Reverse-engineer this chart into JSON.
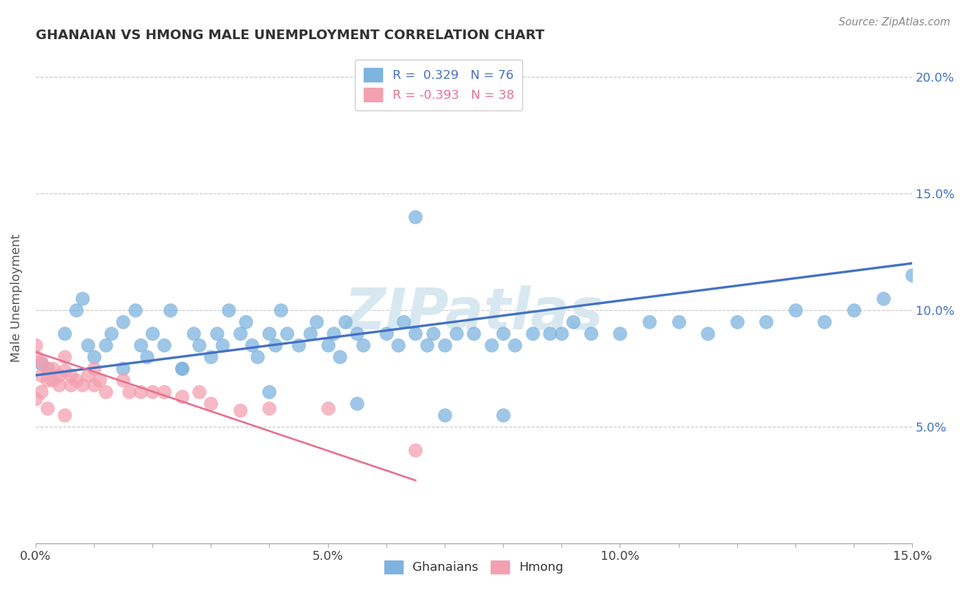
{
  "title": "GHANAIAN VS HMONG MALE UNEMPLOYMENT CORRELATION CHART",
  "source_text": "Source: ZipAtlas.com",
  "ylabel": "Male Unemployment",
  "xmin": 0.0,
  "xmax": 0.15,
  "ymin": 0.0,
  "ymax": 0.21,
  "ytick_positions": [
    0.0,
    0.05,
    0.1,
    0.15,
    0.2
  ],
  "ytick_labels_right": [
    "",
    "5.0%",
    "10.0%",
    "15.0%",
    "20.0%"
  ],
  "xtick_positions": [
    0.0,
    0.01,
    0.02,
    0.03,
    0.04,
    0.05,
    0.06,
    0.07,
    0.08,
    0.09,
    0.1,
    0.11,
    0.12,
    0.13,
    0.14,
    0.15
  ],
  "xtick_labels": [
    "0.0%",
    "",
    "",
    "",
    "",
    "5.0%",
    "",
    "",
    "",
    "",
    "10.0%",
    "",
    "",
    "",
    "",
    "15.0%"
  ],
  "ghanaian_color": "#7EB3E0",
  "hmong_color": "#F4A0B0",
  "trendline_ghanaian_color": "#4472C4",
  "trendline_hmong_color": "#E87090",
  "watermark_color": "#D8E8F0",
  "background_color": "#FFFFFF",
  "grid_color": "#C8C8C8",
  "title_color": "#333333",
  "source_color": "#888888",
  "ylabel_color": "#555555",
  "tick_label_color": "#444444",
  "right_tick_color": "#4472C4",
  "legend_edge_color": "#CCCCCC",
  "ghanaians_x": [
    0.001,
    0.002,
    0.005,
    0.007,
    0.008,
    0.009,
    0.01,
    0.012,
    0.013,
    0.015,
    0.015,
    0.017,
    0.018,
    0.019,
    0.02,
    0.022,
    0.023,
    0.025,
    0.027,
    0.028,
    0.03,
    0.031,
    0.032,
    0.033,
    0.035,
    0.036,
    0.037,
    0.038,
    0.04,
    0.041,
    0.042,
    0.043,
    0.045,
    0.047,
    0.048,
    0.05,
    0.051,
    0.052,
    0.053,
    0.055,
    0.056,
    0.06,
    0.062,
    0.063,
    0.065,
    0.067,
    0.068,
    0.07,
    0.072,
    0.075,
    0.078,
    0.08,
    0.082,
    0.085,
    0.088,
    0.09,
    0.092,
    0.095,
    0.1,
    0.105,
    0.11,
    0.115,
    0.12,
    0.125,
    0.13,
    0.135,
    0.14,
    0.145,
    0.15,
    0.025,
    0.04,
    0.055,
    0.065,
    0.07,
    0.08
  ],
  "ghanaians_y": [
    0.077,
    0.075,
    0.09,
    0.1,
    0.105,
    0.085,
    0.08,
    0.085,
    0.09,
    0.075,
    0.095,
    0.1,
    0.085,
    0.08,
    0.09,
    0.085,
    0.1,
    0.075,
    0.09,
    0.085,
    0.08,
    0.09,
    0.085,
    0.1,
    0.09,
    0.095,
    0.085,
    0.08,
    0.09,
    0.085,
    0.1,
    0.09,
    0.085,
    0.09,
    0.095,
    0.085,
    0.09,
    0.08,
    0.095,
    0.09,
    0.085,
    0.09,
    0.085,
    0.095,
    0.09,
    0.085,
    0.09,
    0.085,
    0.09,
    0.09,
    0.085,
    0.09,
    0.085,
    0.09,
    0.09,
    0.09,
    0.095,
    0.09,
    0.09,
    0.095,
    0.095,
    0.09,
    0.095,
    0.095,
    0.1,
    0.095,
    0.1,
    0.105,
    0.115,
    0.075,
    0.065,
    0.06,
    0.14,
    0.055,
    0.055
  ],
  "hmong_x": [
    0.0,
    0.0,
    0.001,
    0.001,
    0.002,
    0.002,
    0.003,
    0.003,
    0.004,
    0.004,
    0.005,
    0.005,
    0.006,
    0.006,
    0.007,
    0.008,
    0.009,
    0.01,
    0.01,
    0.011,
    0.012,
    0.015,
    0.016,
    0.018,
    0.02,
    0.022,
    0.025,
    0.028,
    0.03,
    0.035,
    0.04,
    0.05,
    0.065,
    0.0,
    0.001,
    0.002,
    0.005
  ],
  "hmong_y": [
    0.085,
    0.08,
    0.078,
    0.072,
    0.075,
    0.07,
    0.075,
    0.07,
    0.072,
    0.068,
    0.08,
    0.074,
    0.072,
    0.068,
    0.07,
    0.068,
    0.072,
    0.075,
    0.068,
    0.07,
    0.065,
    0.07,
    0.065,
    0.065,
    0.065,
    0.065,
    0.063,
    0.065,
    0.06,
    0.057,
    0.058,
    0.058,
    0.04,
    0.062,
    0.065,
    0.058,
    0.055
  ],
  "trendline_g_x0": 0.0,
  "trendline_g_x1": 0.15,
  "trendline_g_y0": 0.072,
  "trendline_g_y1": 0.12,
  "trendline_h_x0": 0.0,
  "trendline_h_x1": 0.065,
  "trendline_h_y0": 0.082,
  "trendline_h_y1": 0.027
}
